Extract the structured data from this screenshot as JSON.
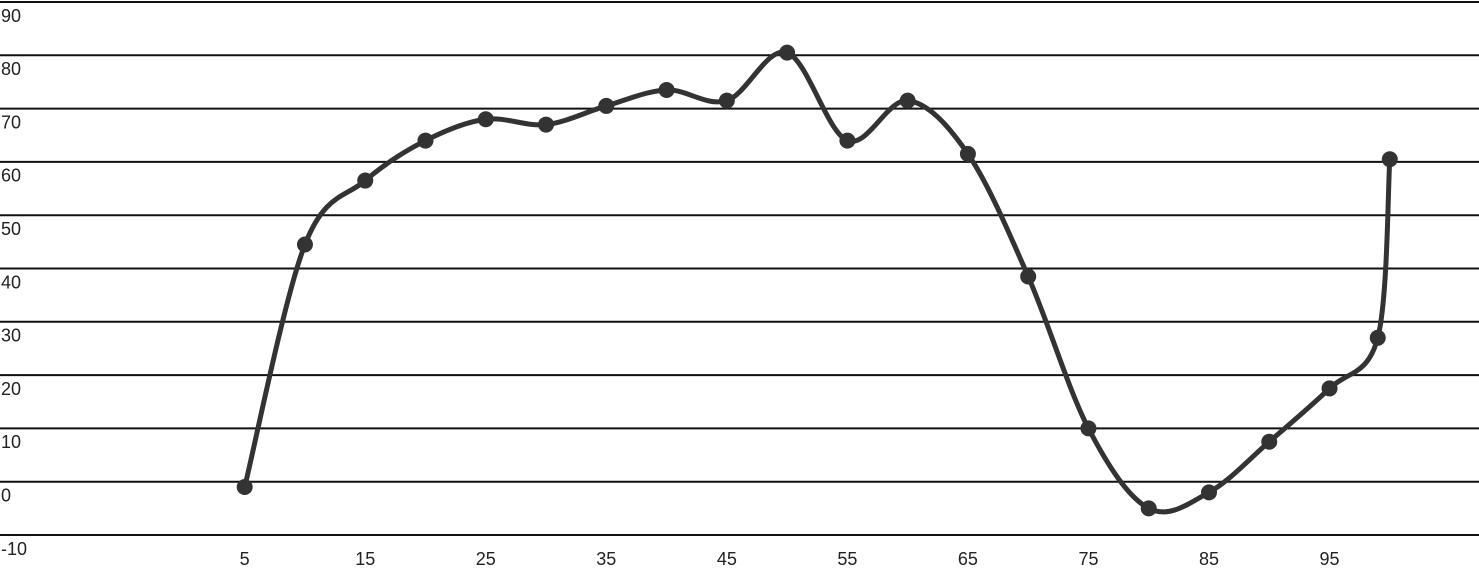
{
  "chart_data": {
    "type": "line",
    "x": [
      5,
      10,
      15,
      20,
      25,
      30,
      35,
      40,
      45,
      50,
      55,
      60,
      65,
      70,
      75,
      80,
      85,
      90,
      95,
      99,
      100
    ],
    "series": [
      {
        "color": "#333333",
        "values": [
          -1,
          44.5,
          56.5,
          64,
          68,
          67,
          70.5,
          73.5,
          71.5,
          80.5,
          64,
          71.5,
          61.5,
          38.5,
          10,
          -5,
          -2,
          7.5,
          17.5,
          27,
          60.5
        ]
      }
    ],
    "xlim": [
      -15.3,
      107.4
    ],
    "xticks": [
      5,
      15,
      25,
      35,
      45,
      55,
      65,
      75,
      85,
      95
    ],
    "ylim": [
      -10,
      90
    ],
    "yticks": [
      -10,
      0,
      10,
      20,
      30,
      40,
      50,
      60,
      70,
      80,
      90
    ],
    "grid": true,
    "smooth": true
  }
}
